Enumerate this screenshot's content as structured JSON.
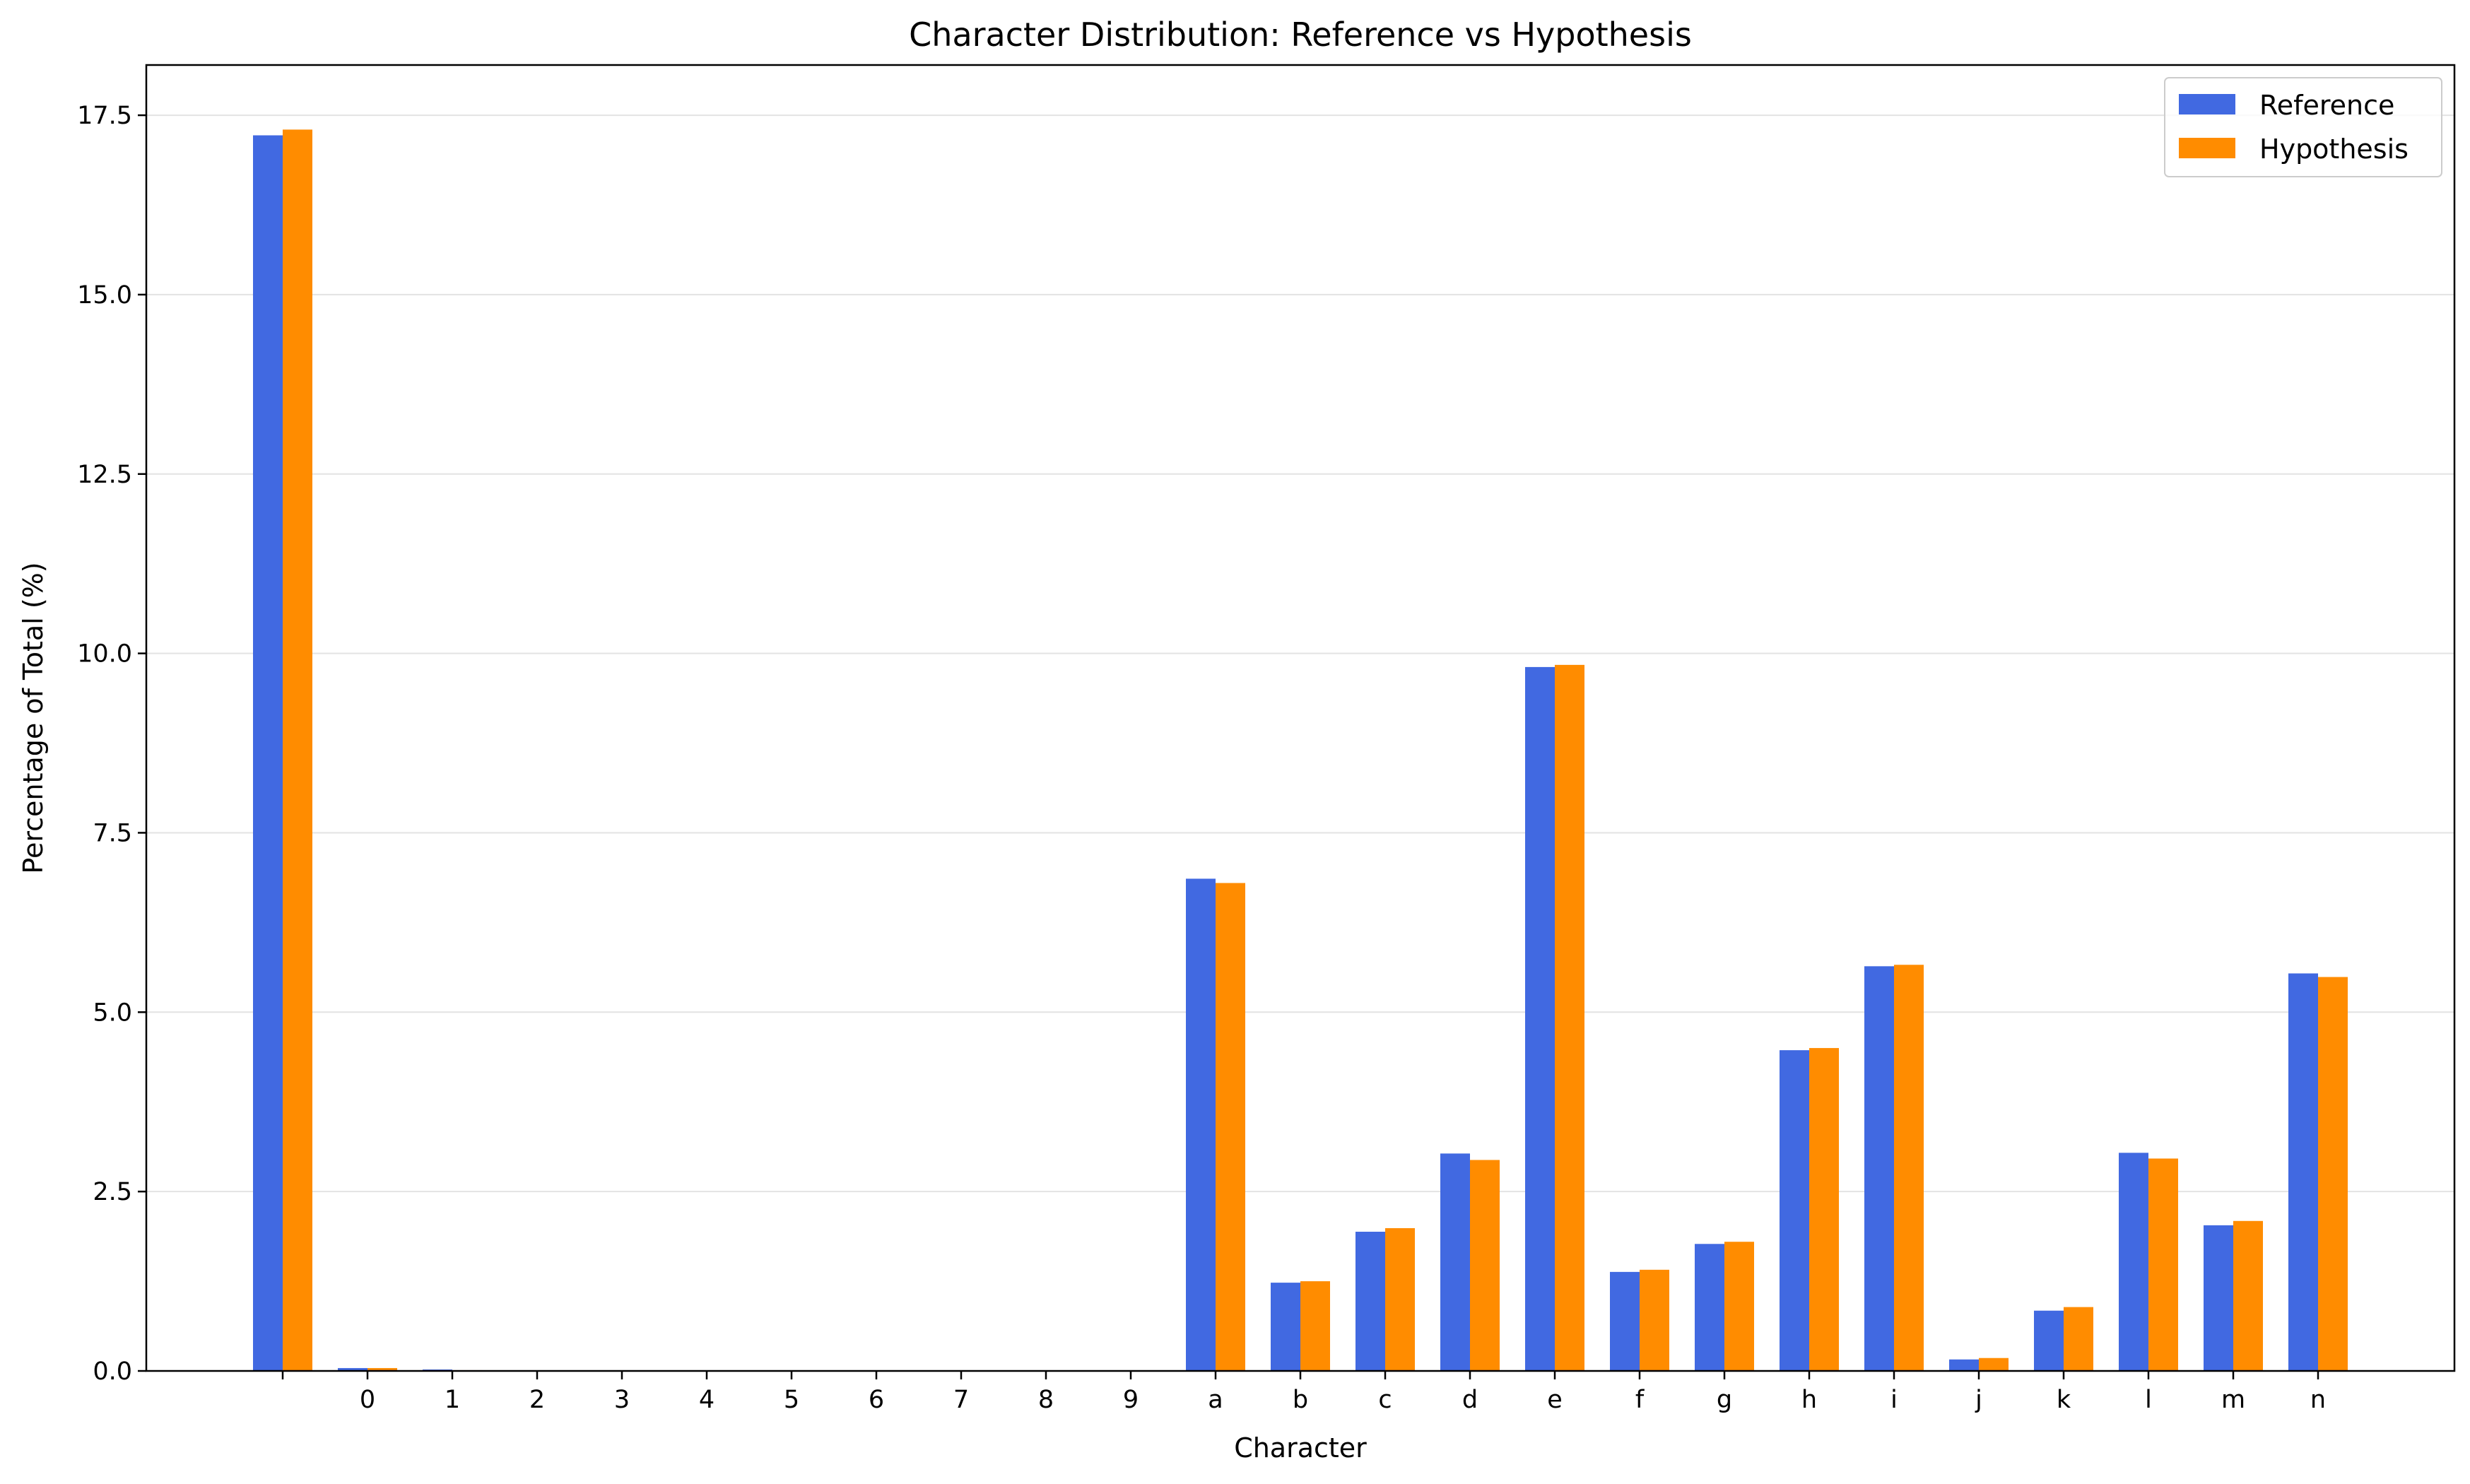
{
  "chart_data": {
    "type": "bar",
    "title": "Character Distribution: Reference vs Hypothesis",
    "xlabel": "Character",
    "ylabel": "Percentage of Total (%)",
    "ylim": [
      0,
      18.2
    ],
    "yticks": [
      0.0,
      2.5,
      5.0,
      7.5,
      10.0,
      12.5,
      15.0,
      17.5
    ],
    "ytick_labels": [
      "0.0",
      "2.5",
      "5.0",
      "7.5",
      "10.0",
      "12.5",
      "15.0",
      "17.5"
    ],
    "grid": "horizontal",
    "legend_position": "top-right",
    "categories": [
      " ",
      "0",
      "1",
      "2",
      "3",
      "4",
      "5",
      "6",
      "7",
      "8",
      "9",
      "a",
      "b",
      "c",
      "d",
      "e",
      "f",
      "g",
      "h",
      "i",
      "j",
      "k",
      "l",
      "m",
      "n"
    ],
    "series": [
      {
        "name": "Reference",
        "color": "#4169e1",
        "values": [
          17.22,
          0.04,
          0.02,
          0.0,
          0.0,
          0.0,
          0.0,
          0.0,
          0.0,
          0.0,
          0.0,
          6.86,
          1.23,
          1.94,
          3.03,
          9.81,
          1.38,
          1.77,
          4.47,
          5.64,
          0.16,
          0.84,
          3.04,
          2.03,
          5.54
        ]
      },
      {
        "name": "Hypothesis",
        "color": "#ff8c00",
        "values": [
          17.3,
          0.04,
          0.01,
          0.0,
          0.0,
          0.0,
          0.0,
          0.0,
          0.0,
          0.0,
          0.0,
          6.8,
          1.25,
          1.99,
          2.94,
          9.84,
          1.41,
          1.8,
          4.5,
          5.66,
          0.18,
          0.89,
          2.96,
          2.09,
          5.49
        ]
      }
    ]
  }
}
